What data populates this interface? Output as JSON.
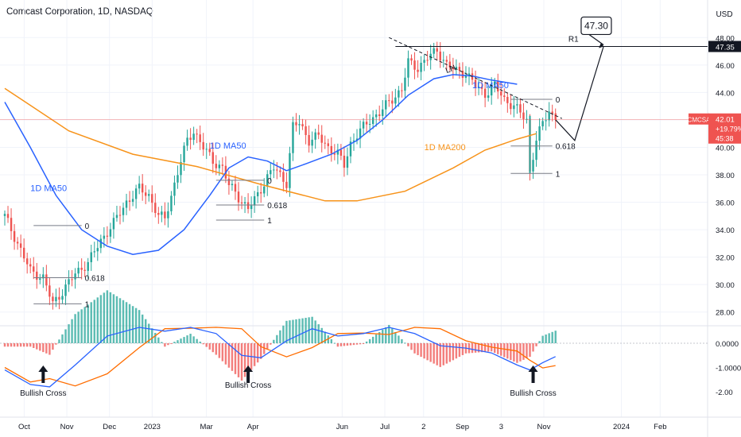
{
  "header": {
    "title": "Comcast Corporation, 1D, NASDAQ",
    "currency": "USD"
  },
  "colors": {
    "up": "#26a69a",
    "down": "#ef5350",
    "ma50": "#2962ff",
    "ma200": "#f7931a",
    "macd_line": "#2962ff",
    "signal_line": "#ff6d00"
  },
  "chart_data": {
    "type": "line",
    "title": "Comcast Corporation, 1D, NASDAQ",
    "y_axis": {
      "unit": "USD",
      "range": [
        27,
        49
      ],
      "ticks": [
        "28.00",
        "30.00",
        "32.00",
        "34.00",
        "36.00",
        "38.00",
        "40.00",
        "42.00",
        "44.00",
        "46.00",
        "48.00"
      ]
    },
    "x_axis": {
      "ticks": [
        "Oct",
        "Nov",
        "Dec",
        "2023",
        "Mar",
        "Apr",
        "Jun",
        "Jul",
        "2",
        "Sep",
        "3",
        "Nov",
        "2024",
        "Feb"
      ]
    },
    "series": [
      {
        "name": "1D MA50",
        "labels": [
          "1D MA50",
          "1D MA50",
          "1D MA50"
        ]
      },
      {
        "name": "1D MA200",
        "labels": [
          "1D MA200"
        ]
      }
    ],
    "price_path": [
      [
        0,
        35
      ],
      [
        4,
        33
      ],
      [
        8,
        31
      ],
      [
        12,
        30.5
      ],
      [
        15,
        28.6
      ],
      [
        18,
        29.5
      ],
      [
        22,
        30.8
      ],
      [
        26,
        31.6
      ],
      [
        30,
        33.2
      ],
      [
        34,
        34.5
      ],
      [
        38,
        36
      ],
      [
        42,
        37
      ],
      [
        45,
        36.5
      ],
      [
        48,
        35
      ],
      [
        50,
        34.8
      ],
      [
        52,
        36.5
      ],
      [
        55,
        39
      ],
      [
        57,
        40.5
      ],
      [
        59,
        41.2
      ],
      [
        62,
        40
      ],
      [
        65,
        39
      ],
      [
        68,
        38.5
      ],
      [
        70,
        37.2
      ],
      [
        72,
        36.8
      ],
      [
        74,
        36
      ],
      [
        76,
        35.5
      ],
      [
        78,
        36.2
      ],
      [
        80,
        37
      ],
      [
        82,
        37.8
      ],
      [
        84,
        38.5
      ],
      [
        86,
        38
      ],
      [
        88,
        37.4
      ],
      [
        90,
        41.5
      ],
      [
        92,
        41.8
      ],
      [
        95,
        40.5
      ],
      [
        98,
        40.8
      ],
      [
        101,
        40
      ],
      [
        104,
        39.5
      ],
      [
        106,
        38.7
      ],
      [
        108,
        40.3
      ],
      [
        111,
        41.2
      ],
      [
        114,
        42
      ],
      [
        117,
        42.5
      ],
      [
        120,
        43.3
      ],
      [
        123,
        44
      ],
      [
        124,
        44.2
      ],
      [
        126,
        46.2
      ],
      [
        129,
        45.8
      ],
      [
        132,
        46.5
      ],
      [
        135,
        47.1
      ],
      [
        138,
        46
      ],
      [
        141,
        45.6
      ],
      [
        144,
        45.4
      ],
      [
        147,
        44.5
      ],
      [
        150,
        43.9
      ],
      [
        153,
        44.5
      ],
      [
        156,
        43.5
      ],
      [
        159,
        43
      ],
      [
        161,
        42.5
      ],
      [
        163,
        42
      ],
      [
        164,
        38.2
      ],
      [
        166,
        40.6
      ],
      [
        168,
        41.7
      ],
      [
        170,
        42.7
      ],
      [
        172,
        42.01
      ]
    ],
    "ma50_path": [
      [
        0,
        43.3
      ],
      [
        8,
        40
      ],
      [
        16,
        36.5
      ],
      [
        24,
        34
      ],
      [
        32,
        32.8
      ],
      [
        40,
        32.2
      ],
      [
        48,
        32.5
      ],
      [
        56,
        34
      ],
      [
        64,
        36.5
      ],
      [
        70,
        38.5
      ],
      [
        76,
        39.3
      ],
      [
        82,
        39
      ],
      [
        88,
        38.3
      ],
      [
        94,
        38.8
      ],
      [
        102,
        39.5
      ],
      [
        110,
        40.5
      ],
      [
        118,
        42
      ],
      [
        126,
        43.8
      ],
      [
        134,
        45
      ],
      [
        140,
        45.3
      ],
      [
        146,
        45.2
      ],
      [
        152,
        44.9
      ],
      [
        160,
        44.6
      ]
    ],
    "ma200_path": [
      [
        0,
        44.3
      ],
      [
        20,
        41.2
      ],
      [
        40,
        39.5
      ],
      [
        60,
        38.6
      ],
      [
        80,
        37.3
      ],
      [
        100,
        36.1
      ],
      [
        110,
        36.1
      ],
      [
        125,
        36.8
      ],
      [
        140,
        38.5
      ],
      [
        150,
        39.8
      ],
      [
        160,
        40.6
      ],
      [
        166,
        41
      ]
    ],
    "levels": [
      {
        "label": "0",
        "value": 34.3,
        "from": 9,
        "to": 24
      },
      {
        "label": "0.618",
        "value": 30.5,
        "from": 9,
        "to": 24
      },
      {
        "label": "1",
        "value": 28.6,
        "from": 9,
        "to": 24
      },
      {
        "label": "0",
        "value": 37.6,
        "from": 66,
        "to": 81
      },
      {
        "label": "0.618",
        "value": 35.8,
        "from": 66,
        "to": 81
      },
      {
        "label": "1",
        "value": 34.7,
        "from": 66,
        "to": 81
      },
      {
        "label": "0",
        "value": 43.5,
        "from": 158,
        "to": 171
      },
      {
        "label": "0.618",
        "value": 40.1,
        "from": 158,
        "to": 171
      },
      {
        "label": "1",
        "value": 38.1,
        "from": 158,
        "to": 171
      }
    ],
    "target": {
      "label": "47.30",
      "value": 47.3
    },
    "resistance": {
      "label": "R1",
      "value": 47.35
    },
    "last_price": {
      "symbol": "CMCSA",
      "price": "42.01",
      "change": "+19.79%",
      "countdown": "45:38",
      "value": 42.01
    },
    "annotations": [
      "LH"
    ],
    "macd": {
      "axis_ticks": [
        "0.0000",
        "-1.0000",
        "-2.00"
      ],
      "crosses": [
        {
          "label": "Bullish Cross"
        },
        {
          "label": "Bullish Cross"
        },
        {
          "label": "Bullish Cross"
        }
      ]
    }
  }
}
